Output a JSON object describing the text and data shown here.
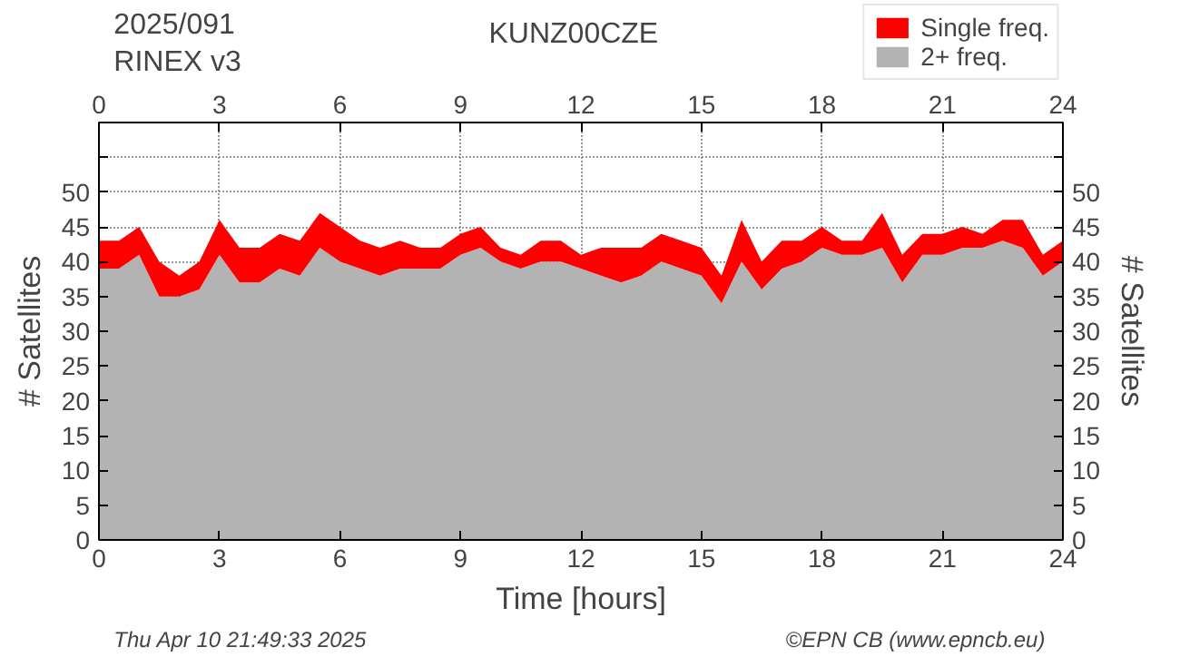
{
  "chart_data": {
    "type": "area",
    "stacked": true,
    "title": "KUNZ00CZE",
    "subtitle": "2025/091\nRINEX v3",
    "xlabel": "Time [hours]",
    "ylabel": "# Satellites",
    "y2label": "# Satellites",
    "annotations": [
      "Thu Apr 10 21:49:33 2025",
      "©EPN CB (www.epncb.eu)"
    ],
    "x": [
      0,
      0.5,
      1,
      1.5,
      2,
      2.5,
      3,
      3.5,
      4,
      4.5,
      5,
      5.5,
      6,
      6.5,
      7,
      7.5,
      8,
      8.5,
      9,
      9.5,
      10,
      10.5,
      11,
      11.5,
      12,
      12.5,
      13,
      13.5,
      14,
      14.5,
      15,
      15.5,
      16,
      16.5,
      17,
      17.5,
      18,
      18.5,
      19,
      19.5,
      20,
      20.5,
      21,
      21.5,
      22,
      22.5,
      23,
      23.5,
      24
    ],
    "series": [
      {
        "name": "2+ freq.",
        "color": "#b3b3b3",
        "values": [
          39,
          39,
          41,
          35,
          35,
          36,
          41,
          37,
          37,
          39,
          38,
          42,
          40,
          39,
          38,
          39,
          39,
          39,
          41,
          42,
          40,
          39,
          40,
          40,
          39,
          38,
          37,
          38,
          40,
          39,
          38,
          34,
          40,
          36,
          39,
          40,
          42,
          41,
          41,
          42,
          37,
          41,
          41,
          42,
          42,
          43,
          42,
          38,
          40
        ]
      },
      {
        "name": "Single freq.",
        "color": "#ff0000",
        "values": [
          4,
          4,
          4,
          5,
          3,
          4,
          5,
          5,
          5,
          5,
          5,
          5,
          5,
          4,
          4,
          4,
          3,
          3,
          3,
          3,
          2,
          2,
          3,
          3,
          2,
          4,
          5,
          4,
          4,
          4,
          4,
          4,
          6,
          4,
          4,
          3,
          3,
          2,
          2,
          5,
          4,
          3,
          3,
          3,
          2,
          3,
          4,
          3,
          3
        ]
      }
    ],
    "xlim": [
      0,
      24
    ],
    "xticks": [
      0,
      3,
      6,
      9,
      12,
      15,
      18,
      21,
      24
    ],
    "x2lim": [
      0,
      24
    ],
    "x2ticks": [
      0,
      3,
      6,
      9,
      12,
      15,
      18,
      21,
      24
    ],
    "ylim": [
      0,
      60
    ],
    "yticks": [
      0,
      5,
      10,
      15,
      20,
      25,
      30,
      35,
      40,
      45,
      50,
      {
        "value": 55,
        "label": null
      }
    ],
    "y2lim": [
      0,
      60
    ],
    "y2ticks": [
      0,
      5,
      10,
      15,
      20,
      25,
      30,
      35,
      40,
      45,
      50,
      {
        "value": 55,
        "label": null
      }
    ],
    "grid": true,
    "legend": "top right"
  }
}
